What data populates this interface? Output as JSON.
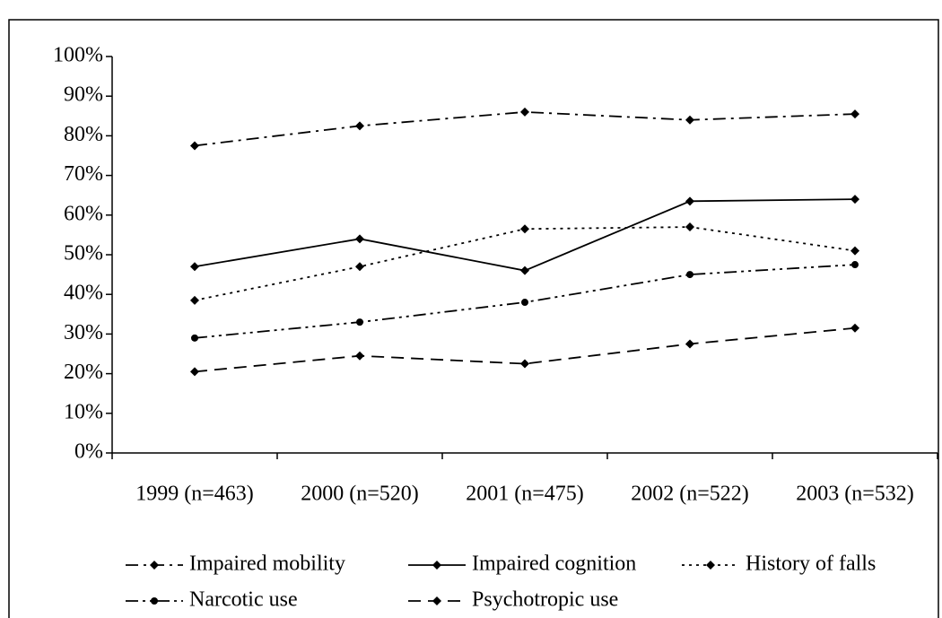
{
  "chart_data": {
    "type": "line",
    "categories": [
      "1999 (n=463)",
      "2000 (n=520)",
      "2001 (n=475)",
      "2002 (n=522)",
      "2003 (n=532)"
    ],
    "series": [
      {
        "name": "Impaired mobility",
        "color": "#000000",
        "dash": "dashdot",
        "marker": "diamond",
        "values": [
          77.5,
          82.5,
          86,
          84,
          85.5
        ]
      },
      {
        "name": "Impaired cognition",
        "color": "#000000",
        "dash": "solid",
        "marker": "diamond",
        "values": [
          47,
          54,
          46,
          63.5,
          64
        ]
      },
      {
        "name": "History of falls",
        "color": "#000000",
        "dash": "dotted",
        "marker": "diamond",
        "values": [
          38.5,
          47,
          56.5,
          57,
          51
        ]
      },
      {
        "name": "Narcotic use",
        "color": "#000000",
        "dash": "dashdotdot",
        "marker": "circle",
        "values": [
          29,
          33,
          38,
          45,
          47.5
        ]
      },
      {
        "name": "Psychotropic use",
        "color": "#000000",
        "dash": "dashed",
        "marker": "diamond",
        "values": [
          20.5,
          24.5,
          22.5,
          27.5,
          31.5
        ]
      }
    ],
    "ylim": [
      0,
      100
    ],
    "yticks": [
      {
        "value": 0,
        "label": "0%"
      },
      {
        "value": 10,
        "label": "10%"
      },
      {
        "value": 20,
        "label": "20%"
      },
      {
        "value": 30,
        "label": "30%"
      },
      {
        "value": 40,
        "label": "40%"
      },
      {
        "value": 50,
        "label": "50%"
      },
      {
        "value": 60,
        "label": "60%"
      },
      {
        "value": 70,
        "label": "70%"
      },
      {
        "value": 80,
        "label": "80%"
      },
      {
        "value": 90,
        "label": "90%"
      },
      {
        "value": 100,
        "label": "100%"
      }
    ],
    "grid": false,
    "legend": "bottom"
  }
}
